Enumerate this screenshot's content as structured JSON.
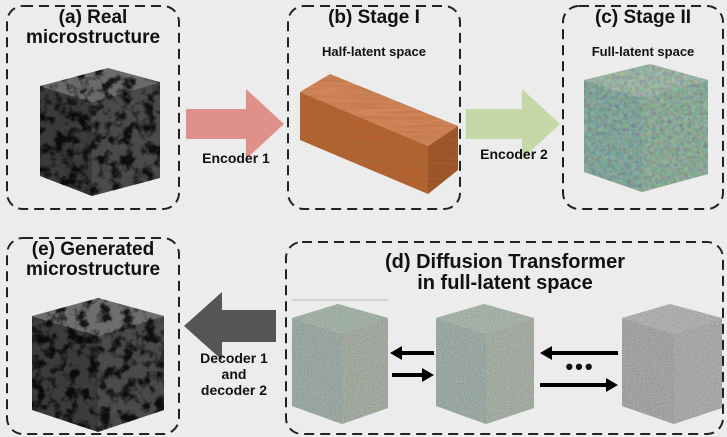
{
  "panels": {
    "a": {
      "title_line1": "(a) Real",
      "title_line2": "microstructure"
    },
    "b": {
      "title": "(b) Stage I",
      "subtitle": "Half-latent space"
    },
    "c": {
      "title": "(c) Stage II",
      "subtitle": "Full-latent space"
    },
    "d": {
      "title_line1": "(d) Diffusion Transformer",
      "title_line2": "in full-latent space"
    },
    "e": {
      "title_line1": "(e) Generated",
      "title_line2": "microstructure"
    }
  },
  "arrows": {
    "encoder1": {
      "label": "Encoder 1",
      "color": "#e0908a"
    },
    "encoder2": {
      "label": "Encoder 2",
      "color": "#c6d7a7"
    },
    "decoder": {
      "label_line1": "Decoder 1",
      "label_line2": "and",
      "label_line3": "decoder 2",
      "color": "#555555"
    }
  },
  "ellipsis": "•••",
  "colors": {
    "background": "#ececec",
    "panel_border": "#222222",
    "stage1_cuboid": "#c1693a",
    "stage2_cube": "#5f9a7d",
    "diffusion_noise": "#8a8a8a"
  }
}
